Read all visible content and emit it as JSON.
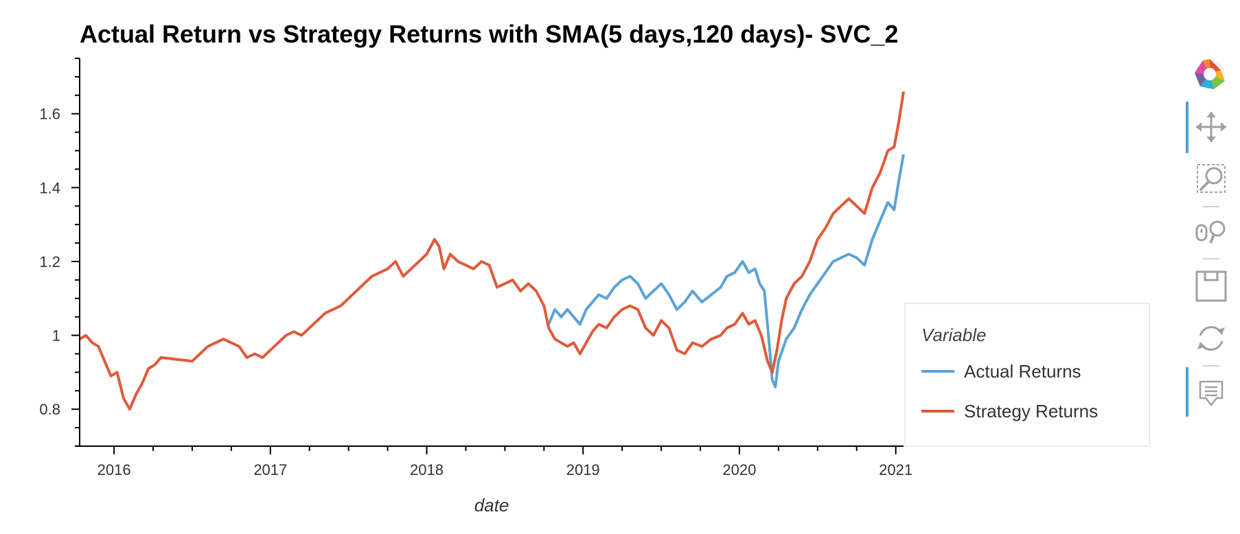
{
  "chart_data": {
    "type": "line",
    "title": "Actual Return vs Strategy Returns with SMA(5 days,120 days)- SVC_2",
    "xlabel": "date",
    "ylabel": "",
    "x_ticks": [
      "2016",
      "2017",
      "2018",
      "2019",
      "2020",
      "2021"
    ],
    "y_ticks": [
      "0.8",
      "1",
      "1.2",
      "1.4",
      "1.6"
    ],
    "xlim": [
      2015.78,
      2021.05
    ],
    "ylim": [
      0.7,
      1.75
    ],
    "legend": {
      "title": "Variable",
      "position": "right"
    },
    "grid": false,
    "series": [
      {
        "name": "Actual Returns",
        "color": "#5ba3d4",
        "points": [
          [
            2018.78,
            1.03
          ],
          [
            2018.82,
            1.07
          ],
          [
            2018.86,
            1.05
          ],
          [
            2018.9,
            1.07
          ],
          [
            2018.94,
            1.05
          ],
          [
            2018.98,
            1.03
          ],
          [
            2019.02,
            1.07
          ],
          [
            2019.06,
            1.09
          ],
          [
            2019.1,
            1.11
          ],
          [
            2019.15,
            1.1
          ],
          [
            2019.2,
            1.13
          ],
          [
            2019.25,
            1.15
          ],
          [
            2019.3,
            1.16
          ],
          [
            2019.35,
            1.14
          ],
          [
            2019.4,
            1.1
          ],
          [
            2019.45,
            1.12
          ],
          [
            2019.5,
            1.14
          ],
          [
            2019.55,
            1.11
          ],
          [
            2019.6,
            1.07
          ],
          [
            2019.65,
            1.09
          ],
          [
            2019.7,
            1.12
          ],
          [
            2019.76,
            1.09
          ],
          [
            2019.82,
            1.11
          ],
          [
            2019.88,
            1.13
          ],
          [
            2019.92,
            1.16
          ],
          [
            2019.97,
            1.17
          ],
          [
            2020.02,
            1.2
          ],
          [
            2020.06,
            1.17
          ],
          [
            2020.1,
            1.18
          ],
          [
            2020.13,
            1.14
          ],
          [
            2020.16,
            1.12
          ],
          [
            2020.19,
            0.98
          ],
          [
            2020.21,
            0.88
          ],
          [
            2020.23,
            0.86
          ],
          [
            2020.25,
            0.93
          ],
          [
            2020.3,
            0.99
          ],
          [
            2020.35,
            1.02
          ],
          [
            2020.4,
            1.07
          ],
          [
            2020.45,
            1.11
          ],
          [
            2020.5,
            1.14
          ],
          [
            2020.55,
            1.17
          ],
          [
            2020.6,
            1.2
          ],
          [
            2020.65,
            1.21
          ],
          [
            2020.7,
            1.22
          ],
          [
            2020.75,
            1.21
          ],
          [
            2020.8,
            1.19
          ],
          [
            2020.85,
            1.26
          ],
          [
            2020.9,
            1.31
          ],
          [
            2020.95,
            1.36
          ],
          [
            2020.99,
            1.34
          ],
          [
            2021.02,
            1.42
          ],
          [
            2021.05,
            1.49
          ]
        ]
      },
      {
        "name": "Strategy Returns",
        "color": "#e05a3a",
        "points": [
          [
            2015.78,
            0.99
          ],
          [
            2015.82,
            1.0
          ],
          [
            2015.86,
            0.98
          ],
          [
            2015.9,
            0.97
          ],
          [
            2015.94,
            0.93
          ],
          [
            2015.98,
            0.89
          ],
          [
            2016.02,
            0.9
          ],
          [
            2016.06,
            0.83
          ],
          [
            2016.1,
            0.8
          ],
          [
            2016.14,
            0.84
          ],
          [
            2016.18,
            0.87
          ],
          [
            2016.22,
            0.91
          ],
          [
            2016.26,
            0.92
          ],
          [
            2016.3,
            0.94
          ],
          [
            2016.5,
            0.93
          ],
          [
            2016.55,
            0.95
          ],
          [
            2016.6,
            0.97
          ],
          [
            2016.65,
            0.98
          ],
          [
            2016.7,
            0.99
          ],
          [
            2016.75,
            0.98
          ],
          [
            2016.8,
            0.97
          ],
          [
            2016.85,
            0.94
          ],
          [
            2016.9,
            0.95
          ],
          [
            2016.95,
            0.94
          ],
          [
            2017.0,
            0.96
          ],
          [
            2017.05,
            0.98
          ],
          [
            2017.1,
            1.0
          ],
          [
            2017.15,
            1.01
          ],
          [
            2017.2,
            1.0
          ],
          [
            2017.25,
            1.02
          ],
          [
            2017.3,
            1.04
          ],
          [
            2017.35,
            1.06
          ],
          [
            2017.4,
            1.07
          ],
          [
            2017.45,
            1.08
          ],
          [
            2017.5,
            1.1
          ],
          [
            2017.55,
            1.12
          ],
          [
            2017.6,
            1.14
          ],
          [
            2017.65,
            1.16
          ],
          [
            2017.7,
            1.17
          ],
          [
            2017.75,
            1.18
          ],
          [
            2017.8,
            1.2
          ],
          [
            2017.85,
            1.16
          ],
          [
            2017.9,
            1.18
          ],
          [
            2017.95,
            1.2
          ],
          [
            2018.0,
            1.22
          ],
          [
            2018.05,
            1.26
          ],
          [
            2018.08,
            1.24
          ],
          [
            2018.11,
            1.18
          ],
          [
            2018.15,
            1.22
          ],
          [
            2018.2,
            1.2
          ],
          [
            2018.25,
            1.19
          ],
          [
            2018.3,
            1.18
          ],
          [
            2018.35,
            1.2
          ],
          [
            2018.4,
            1.19
          ],
          [
            2018.45,
            1.13
          ],
          [
            2018.5,
            1.14
          ],
          [
            2018.55,
            1.15
          ],
          [
            2018.6,
            1.12
          ],
          [
            2018.65,
            1.14
          ],
          [
            2018.7,
            1.12
          ],
          [
            2018.75,
            1.08
          ],
          [
            2018.78,
            1.02
          ],
          [
            2018.82,
            0.99
          ],
          [
            2018.86,
            0.98
          ],
          [
            2018.9,
            0.97
          ],
          [
            2018.94,
            0.98
          ],
          [
            2018.98,
            0.95
          ],
          [
            2019.02,
            0.98
          ],
          [
            2019.06,
            1.01
          ],
          [
            2019.1,
            1.03
          ],
          [
            2019.15,
            1.02
          ],
          [
            2019.2,
            1.05
          ],
          [
            2019.25,
            1.07
          ],
          [
            2019.3,
            1.08
          ],
          [
            2019.35,
            1.07
          ],
          [
            2019.4,
            1.02
          ],
          [
            2019.45,
            1.0
          ],
          [
            2019.5,
            1.04
          ],
          [
            2019.55,
            1.02
          ],
          [
            2019.6,
            0.96
          ],
          [
            2019.65,
            0.95
          ],
          [
            2019.7,
            0.98
          ],
          [
            2019.76,
            0.97
          ],
          [
            2019.82,
            0.99
          ],
          [
            2019.88,
            1.0
          ],
          [
            2019.92,
            1.02
          ],
          [
            2019.97,
            1.03
          ],
          [
            2020.02,
            1.06
          ],
          [
            2020.06,
            1.03
          ],
          [
            2020.1,
            1.04
          ],
          [
            2020.14,
            1.0
          ],
          [
            2020.18,
            0.93
          ],
          [
            2020.21,
            0.9
          ],
          [
            2020.24,
            0.96
          ],
          [
            2020.27,
            1.04
          ],
          [
            2020.3,
            1.1
          ],
          [
            2020.35,
            1.14
          ],
          [
            2020.4,
            1.16
          ],
          [
            2020.45,
            1.2
          ],
          [
            2020.5,
            1.26
          ],
          [
            2020.55,
            1.29
          ],
          [
            2020.6,
            1.33
          ],
          [
            2020.65,
            1.35
          ],
          [
            2020.7,
            1.37
          ],
          [
            2020.75,
            1.35
          ],
          [
            2020.8,
            1.33
          ],
          [
            2020.85,
            1.4
          ],
          [
            2020.9,
            1.44
          ],
          [
            2020.95,
            1.5
          ],
          [
            2020.99,
            1.51
          ],
          [
            2021.02,
            1.58
          ],
          [
            2021.05,
            1.66
          ]
        ]
      }
    ]
  },
  "toolbar": {
    "tools": [
      {
        "name": "bokeh-logo-icon",
        "interactable": true
      },
      {
        "name": "pan-tool-icon",
        "interactable": true
      },
      {
        "name": "box-zoom-tool-icon",
        "interactable": true
      },
      {
        "name": "wheel-zoom-tool-icon",
        "interactable": true
      },
      {
        "name": "save-tool-icon",
        "interactable": true
      },
      {
        "name": "reset-tool-icon",
        "interactable": true
      },
      {
        "name": "hover-tool-icon",
        "interactable": true
      }
    ]
  }
}
